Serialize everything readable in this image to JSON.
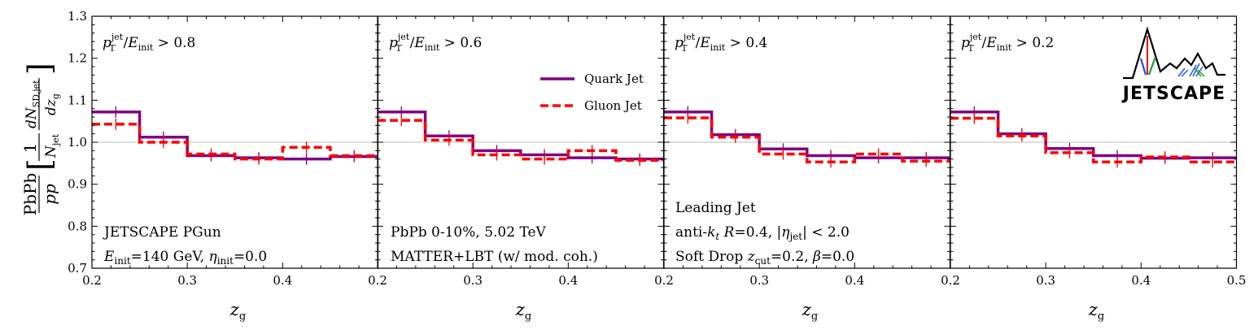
{
  "colors": {
    "quark": "#800080",
    "gluon": "#ff0000",
    "reference": "#bbbbbb",
    "logo_red": "#e02020",
    "logo_blue": "#1e50ff",
    "logo_green": "#1fa030"
  },
  "chart_data": [
    {
      "type": "line",
      "style": "step",
      "title": "p_T^jet/E_init > 0.8",
      "title_parts": {
        "p": "p",
        "p_sup": "jet",
        "p_sub": "T",
        "slash": "/",
        "e": "E",
        "e_sub": "init",
        "cut": " > 0.8"
      },
      "xlabel": "z_g",
      "xlim": [
        0.2,
        0.5
      ],
      "ylim": [
        0.7,
        1.3
      ],
      "bin_edges": [
        0.2,
        0.25,
        0.3,
        0.35,
        0.4,
        0.45,
        0.5
      ],
      "series": [
        {
          "name": "Quark Jet",
          "values": [
            1.072,
            1.012,
            0.968,
            0.963,
            0.96,
            0.966
          ]
        },
        {
          "name": "Gluon Jet",
          "values": [
            1.043,
            1.0,
            0.972,
            0.96,
            0.988,
            0.968
          ]
        }
      ],
      "annotations": [
        "JETSCAPE PGun",
        "E_init=140 GeV, η_init=0.0"
      ],
      "annotation_parts": {
        "line1": "JETSCAPE PGun",
        "e": "E",
        "e_sub": "init",
        "e_val": "=140 GeV, ",
        "eta": "η",
        "eta_sub": "init",
        "eta_val": "=0.0"
      }
    },
    {
      "type": "line",
      "style": "step",
      "title": "p_T^jet/E_init > 0.6",
      "title_parts": {
        "p": "p",
        "p_sup": "jet",
        "p_sub": "T",
        "slash": "/",
        "e": "E",
        "e_sub": "init",
        "cut": " > 0.6"
      },
      "xlabel": "z_g",
      "xlim": [
        0.2,
        0.5
      ],
      "ylim": [
        0.7,
        1.3
      ],
      "bin_edges": [
        0.2,
        0.25,
        0.3,
        0.35,
        0.4,
        0.45,
        0.5
      ],
      "series": [
        {
          "name": "Quark Jet",
          "values": [
            1.072,
            1.015,
            0.98,
            0.97,
            0.963,
            0.96
          ]
        },
        {
          "name": "Gluon Jet",
          "values": [
            1.052,
            1.005,
            0.97,
            0.96,
            0.98,
            0.957
          ]
        }
      ],
      "annotations": [
        "PbPb 0-10%, 5.02 TeV",
        "MATTER+LBT (w/ mod. coh.)"
      ]
    },
    {
      "type": "line",
      "style": "step",
      "title": "p_T^jet/E_init > 0.4",
      "title_parts": {
        "p": "p",
        "p_sup": "jet",
        "p_sub": "T",
        "slash": "/",
        "e": "E",
        "e_sub": "init",
        "cut": " > 0.4"
      },
      "xlabel": "z_g",
      "xlim": [
        0.2,
        0.5
      ],
      "ylim": [
        0.7,
        1.3
      ],
      "bin_edges": [
        0.2,
        0.25,
        0.3,
        0.35,
        0.4,
        0.45,
        0.5
      ],
      "series": [
        {
          "name": "Quark Jet",
          "values": [
            1.072,
            1.018,
            0.984,
            0.968,
            0.963,
            0.963
          ]
        },
        {
          "name": "Gluon Jet",
          "values": [
            1.058,
            1.012,
            0.972,
            0.953,
            0.972,
            0.955
          ]
        }
      ],
      "annotations": [
        "Leading Jet",
        "anti-k_t R=0.4, |η_jet| < 2.0",
        "Soft Drop z_cut=0.2, β=0.0"
      ],
      "annotation_parts": {
        "line1": "Leading Jet",
        "l2_a": "anti-",
        "l2_k": "k",
        "l2_k_sub": "t",
        "l2_r": " R",
        "l2_rval": "=0.4, |",
        "l2_eta": "η",
        "l2_eta_sub": "jet",
        "l2_end": "| < 2.0",
        "l3_a": "Soft Drop ",
        "l3_z": "z",
        "l3_z_sub": "cut",
        "l3_zval": "=0.2, ",
        "l3_beta": "β",
        "l3_end": "=0.0"
      }
    },
    {
      "type": "line",
      "style": "step",
      "title": "p_T^jet/E_init > 0.2",
      "title_parts": {
        "p": "p",
        "p_sup": "jet",
        "p_sub": "T",
        "slash": "/",
        "e": "E",
        "e_sub": "init",
        "cut": " > 0.2"
      },
      "xlabel": "z_g",
      "xlim": [
        0.2,
        0.5
      ],
      "ylim": [
        0.7,
        1.3
      ],
      "bin_edges": [
        0.2,
        0.25,
        0.3,
        0.35,
        0.4,
        0.45,
        0.5
      ],
      "series": [
        {
          "name": "Quark Jet",
          "values": [
            1.072,
            1.02,
            0.985,
            0.968,
            0.962,
            0.963
          ]
        },
        {
          "name": "Gluon Jet",
          "values": [
            1.057,
            1.015,
            0.975,
            0.953,
            0.965,
            0.953
          ]
        }
      ],
      "annotations": []
    }
  ],
  "y_axis": {
    "ticks": [
      0.7,
      0.8,
      0.9,
      1.0,
      1.1,
      1.2,
      1.3
    ],
    "label": "PbPb/pp [ (1/N_jet) dN_SD,jet/dz_g ]",
    "label_parts": {
      "num": "PbPb",
      "den": "pp",
      "one": "1",
      "n": "N",
      "n_sub": "jet",
      "dn": "dN",
      "dn_sub": "SD,jet",
      "dz": "dz",
      "dz_sub": "g",
      "lb": "[",
      "rb": "]"
    }
  },
  "x_axis": {
    "ticks": [
      0.2,
      0.3,
      0.4,
      0.5
    ],
    "label_parts": {
      "z": "z",
      "z_sub": "g"
    }
  },
  "legend": {
    "position": "panel-2 upper-right",
    "items": [
      "Quark Jet",
      "Gluon Jet"
    ]
  },
  "logo": {
    "text": "JETSCAPE"
  }
}
